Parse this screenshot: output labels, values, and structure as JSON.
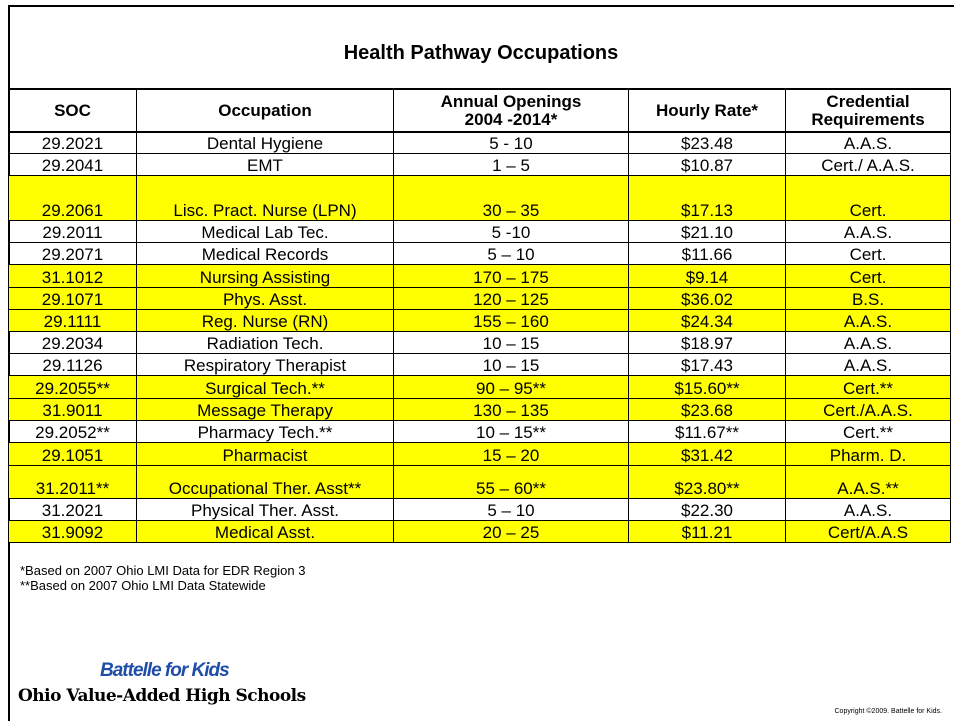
{
  "title": "Health Pathway Occupations",
  "table": {
    "header": [
      [
        "SOC"
      ],
      [
        "Occupation"
      ],
      [
        "Annual Openings",
        "2004 -2014*"
      ],
      [
        "Hourly Rate*"
      ],
      [
        "Credential",
        "Requirements"
      ]
    ],
    "rows": [
      [
        "29.2021",
        "Dental Hygiene",
        "5 - 10",
        "$23.48",
        "A.A.S."
      ],
      [
        "29.2041",
        "EMT",
        "1 – 5",
        "$10.87",
        "Cert./ A.A.S."
      ],
      [
        "29.2061",
        "Lisc. Pract. Nurse (LPN)",
        "30 – 35",
        "$17.13",
        "Cert."
      ],
      [
        "29.2011",
        "Medical Lab Tec.",
        "5 -10",
        "$21.10",
        "A.A.S."
      ],
      [
        "29.2071",
        "Medical Records",
        "5 – 10",
        "$11.66",
        "Cert."
      ],
      [
        "31.1012",
        "Nursing Assisting",
        "170 – 175",
        "$9.14",
        "Cert."
      ],
      [
        "29.1071",
        "Phys. Asst.",
        "120 – 125",
        "$36.02",
        "B.S."
      ],
      [
        "29.1111",
        "Reg. Nurse (RN)",
        "155 – 160",
        "$24.34",
        "A.A.S."
      ],
      [
        "29.2034",
        "Radiation Tech.",
        "10 – 15",
        "$18.97",
        "A.A.S."
      ],
      [
        "29.1126",
        "Respiratory Therapist",
        "10 – 15",
        "$17.43",
        "A.A.S."
      ],
      [
        "29.2055**",
        "Surgical Tech.**",
        "90 – 95**",
        "$15.60**",
        "Cert.**"
      ],
      [
        "31.9011",
        "Message Therapy",
        "130 – 135",
        "$23.68",
        "Cert./A.A.S."
      ],
      [
        "29.2052**",
        "Pharmacy Tech.**",
        "10 – 15**",
        "$11.67**",
        "Cert.**"
      ],
      [
        "29.1051",
        "Pharmacist",
        "15 – 20",
        "$31.42",
        "Pharm. D."
      ],
      [
        "31.2011**",
        "Occupational Ther. Asst**",
        "55 – 60**",
        "$23.80**",
        "A.A.S.**"
      ],
      [
        "31.2021",
        "Physical Ther. Asst.",
        "5 – 10",
        "$22.30",
        "A.A.S."
      ],
      [
        "31.9092",
        "Medical Asst.",
        "20 – 25",
        "$11.21",
        "Cert/A.A.S"
      ]
    ],
    "highlighted": [
      false,
      false,
      true,
      false,
      false,
      true,
      true,
      true,
      false,
      false,
      true,
      true,
      false,
      true,
      true,
      false,
      true
    ]
  },
  "footnotes": [
    "*Based on 2007  Ohio LMI Data for EDR Region 3",
    "**Based on 2007  Ohio LMI Data Statewide"
  ],
  "logo": {
    "brand": "Battelle for Kids",
    "tagline": "Ohio Value-Added High Schools"
  },
  "copyright": "Copyright ©2009. Battelle for Kids."
}
